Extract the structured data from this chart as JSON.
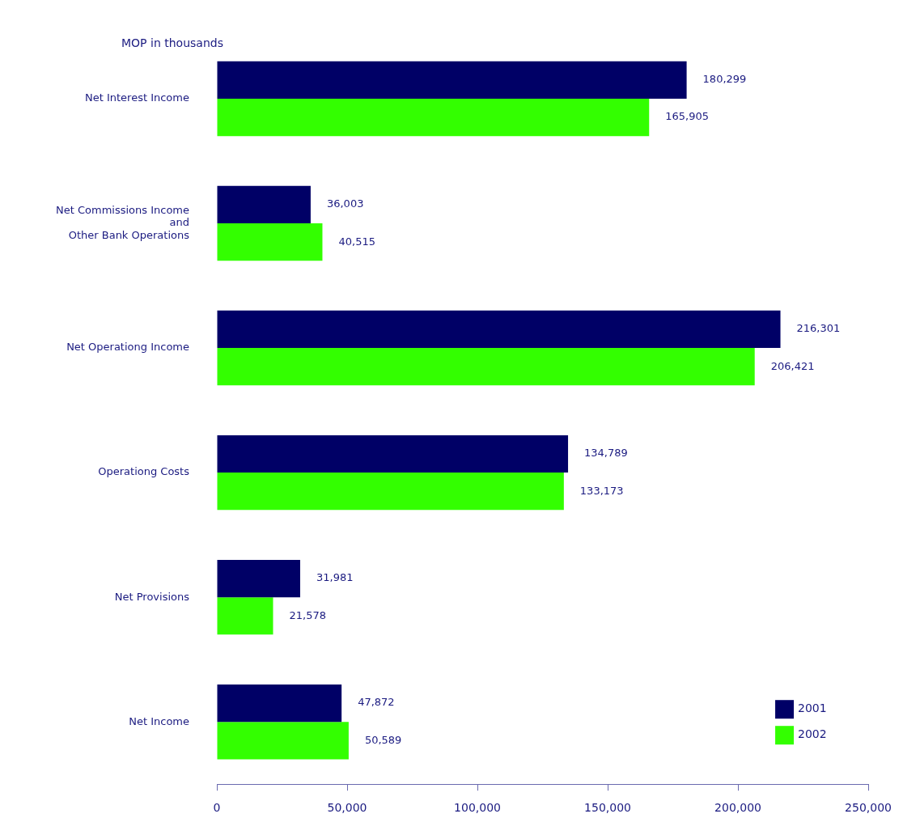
{
  "chart_data": {
    "type": "bar",
    "orientation": "horizontal",
    "title": "MOP in thousands",
    "categories": [
      "Net Interest Income",
      "Net Commissions Income\nand\nOther Bank Operations",
      "Net Operationg Income",
      "Operationg Costs",
      "Net Provisions",
      "Net Income"
    ],
    "series": [
      {
        "name": "2001",
        "color": "#000066",
        "values": [
          180299,
          36003,
          216301,
          134789,
          31981,
          47872
        ],
        "value_labels": [
          "180,299",
          "36,003",
          "216,301",
          "134,789",
          "31,981",
          "47,872"
        ]
      },
      {
        "name": "2002",
        "color": "#33ff00",
        "values": [
          165905,
          40515,
          206421,
          133173,
          21578,
          50589
        ],
        "value_labels": [
          "165,905",
          "40,515",
          "206,421",
          "133,173",
          "21,578",
          "50,589"
        ]
      }
    ],
    "xlim": [
      0,
      250000
    ],
    "xticks": [
      {
        "value": 0,
        "label": "0"
      },
      {
        "value": 50000,
        "label": "50,000"
      },
      {
        "value": 100000,
        "label": "100,000"
      },
      {
        "value": 150000,
        "label": "150,000"
      },
      {
        "value": 200000,
        "label": "200,000"
      },
      {
        "value": 250000,
        "label": "250,000"
      }
    ],
    "grid": false,
    "legend": "bottom right"
  }
}
